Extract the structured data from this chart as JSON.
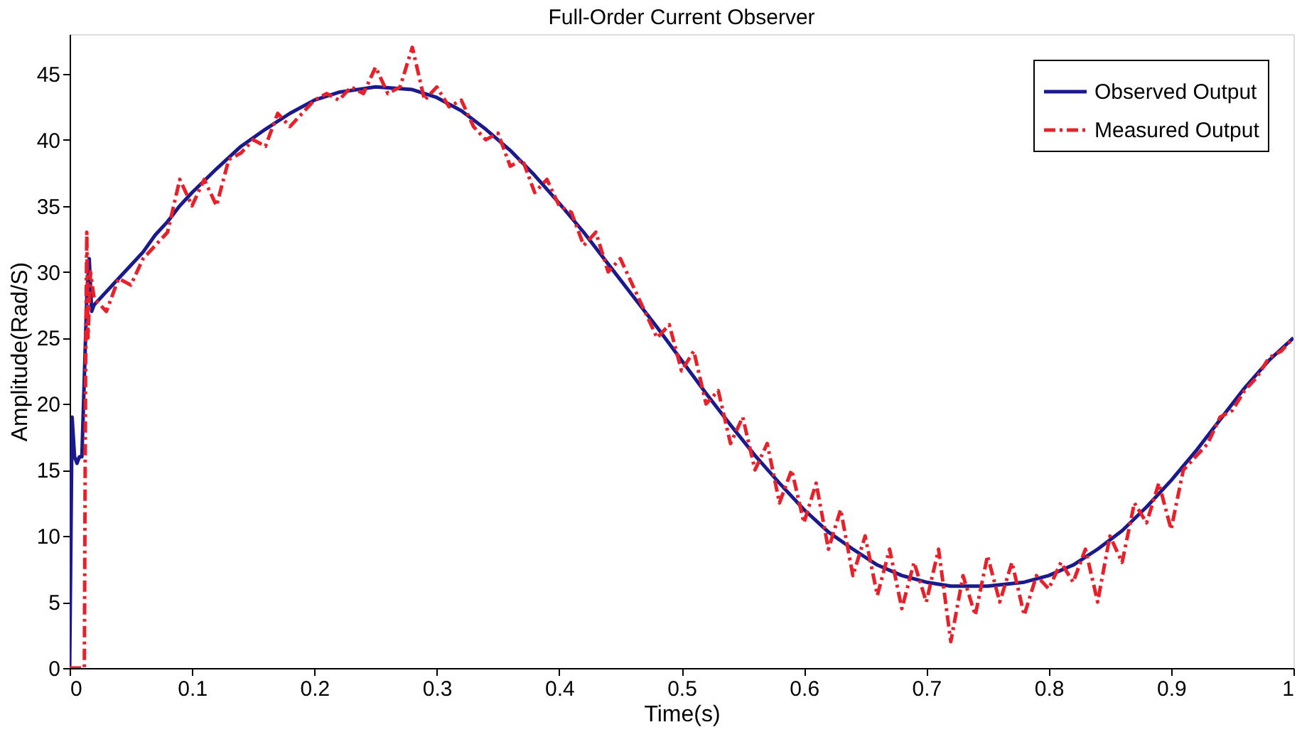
{
  "chart_data": {
    "type": "line",
    "title": "Full-Order Current Observer",
    "xlabel": "Time(s)",
    "ylabel": "Amplitude(Rad/S)",
    "xlim": [
      0,
      1
    ],
    "xticks": [
      0,
      0.1,
      0.2,
      0.3,
      0.4,
      0.5,
      0.6,
      0.7,
      0.8,
      0.9,
      1
    ],
    "ylim": [
      0,
      48
    ],
    "yticks": [
      0,
      5,
      10,
      15,
      20,
      25,
      30,
      35,
      40,
      45
    ],
    "grid": false,
    "legend": "top right",
    "marker": "none",
    "series": [
      {
        "name": "Observed Output",
        "color": "#1a1a8c",
        "line_style": "solid",
        "x": [
          0,
          0.002,
          0.004,
          0.006,
          0.008,
          0.01,
          0.012,
          0.014,
          0.016,
          0.018,
          0.02,
          0.03,
          0.04,
          0.05,
          0.06,
          0.07,
          0.08,
          0.09,
          0.1,
          0.12,
          0.14,
          0.16,
          0.18,
          0.2,
          0.22,
          0.25,
          0.28,
          0.3,
          0.32,
          0.34,
          0.36,
          0.38,
          0.4,
          0.42,
          0.44,
          0.46,
          0.48,
          0.5,
          0.52,
          0.54,
          0.56,
          0.58,
          0.6,
          0.62,
          0.64,
          0.66,
          0.68,
          0.7,
          0.72,
          0.75,
          0.78,
          0.8,
          0.82,
          0.84,
          0.86,
          0.88,
          0.9,
          0.92,
          0.94,
          0.96,
          0.98,
          1
        ],
        "values": [
          0,
          19,
          16,
          15.5,
          16,
          16,
          22,
          28,
          31,
          27,
          27.5,
          28.5,
          29.5,
          30.5,
          31.5,
          32.8,
          33.8,
          35,
          36,
          37.8,
          39.5,
          40.8,
          42,
          43,
          43.6,
          44,
          43.8,
          43.2,
          42.2,
          40.8,
          39.2,
          37.3,
          35.2,
          33,
          30.6,
          28.2,
          25.8,
          23.3,
          20.8,
          18.4,
          16.1,
          14,
          12,
          10.3,
          9,
          7.8,
          7,
          6.5,
          6.2,
          6.2,
          6.5,
          7,
          7.8,
          9,
          10.4,
          12.2,
          14.2,
          16.4,
          18.8,
          21.2,
          23.3,
          25
        ]
      },
      {
        "name": "Measured Output",
        "color": "#e8202a",
        "line_style": "dashdot",
        "x": [
          0,
          0.012,
          0.013,
          0.014,
          0.015,
          0.017,
          0.02,
          0.03,
          0.04,
          0.05,
          0.06,
          0.07,
          0.08,
          0.09,
          0.1,
          0.11,
          0.12,
          0.13,
          0.14,
          0.15,
          0.16,
          0.17,
          0.18,
          0.19,
          0.2,
          0.21,
          0.22,
          0.23,
          0.24,
          0.25,
          0.26,
          0.27,
          0.28,
          0.29,
          0.3,
          0.31,
          0.32,
          0.33,
          0.34,
          0.35,
          0.36,
          0.37,
          0.38,
          0.39,
          0.4,
          0.41,
          0.42,
          0.43,
          0.44,
          0.45,
          0.46,
          0.47,
          0.48,
          0.49,
          0.5,
          0.51,
          0.52,
          0.53,
          0.54,
          0.55,
          0.56,
          0.57,
          0.58,
          0.59,
          0.6,
          0.61,
          0.62,
          0.63,
          0.64,
          0.65,
          0.66,
          0.67,
          0.68,
          0.69,
          0.7,
          0.71,
          0.72,
          0.73,
          0.74,
          0.75,
          0.76,
          0.77,
          0.78,
          0.79,
          0.8,
          0.81,
          0.82,
          0.83,
          0.84,
          0.85,
          0.86,
          0.87,
          0.88,
          0.89,
          0.9,
          0.91,
          0.92,
          0.93,
          0.94,
          0.95,
          0.96,
          0.97,
          0.98,
          0.99,
          1
        ],
        "values": [
          0,
          0,
          22,
          33,
          25,
          30,
          28,
          27,
          29.5,
          29,
          31,
          32,
          33,
          37,
          35,
          37,
          35,
          38.5,
          39,
          40,
          39.5,
          42,
          41,
          42,
          43,
          43.5,
          43,
          44,
          43.5,
          45.5,
          43.5,
          44,
          47,
          43,
          44,
          42.5,
          43,
          41,
          40,
          40.5,
          38,
          38.5,
          36,
          37,
          35,
          34.5,
          32,
          33,
          30,
          31,
          29,
          27,
          25,
          26,
          22.5,
          24,
          20,
          21,
          17,
          19,
          15,
          17,
          12.5,
          15,
          11,
          14,
          9,
          12,
          7,
          10,
          5.5,
          9,
          4.5,
          8,
          5,
          9,
          2,
          7,
          4,
          8.5,
          5,
          8,
          4,
          7,
          6,
          8,
          6.5,
          9,
          5,
          10,
          8,
          12.5,
          11,
          14,
          10.5,
          15,
          16,
          17,
          19,
          19.5,
          21,
          22,
          23.5,
          24,
          25
        ]
      }
    ]
  }
}
